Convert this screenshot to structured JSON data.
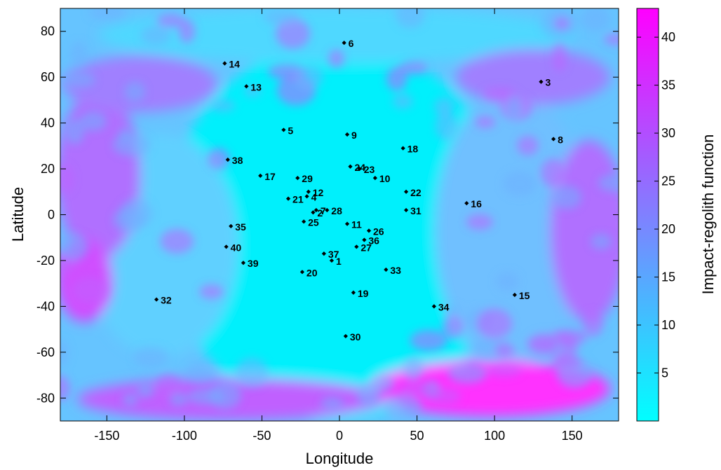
{
  "chart_data": {
    "type": "scatter",
    "subtype": "heatmap-with-labeled-points",
    "xlabel": "Longitude",
    "ylabel": "Latitude",
    "xlim": [
      -180,
      180
    ],
    "ylim": [
      -90,
      90
    ],
    "xticks": [
      -150,
      -100,
      -50,
      0,
      50,
      100,
      150
    ],
    "yticks": [
      80,
      60,
      40,
      20,
      0,
      -20,
      -40,
      -60,
      -80
    ],
    "grid": false,
    "colorbar": {
      "label": "Impact-regolith function",
      "range": [
        0,
        43
      ],
      "ticks": [
        40,
        35,
        30,
        25,
        20,
        15,
        10,
        5
      ],
      "color_low": "#00ffff",
      "color_high": "#ff00ff"
    },
    "points": [
      {
        "label": "1",
        "lon": -5,
        "lat": -20
      },
      {
        "label": "2",
        "lon": -17,
        "lat": 1
      },
      {
        "label": "3",
        "lon": 130,
        "lat": 58
      },
      {
        "label": "4",
        "lon": -21,
        "lat": 8
      },
      {
        "label": "5",
        "lon": -36,
        "lat": 37
      },
      {
        "label": "6",
        "lon": 3,
        "lat": 75
      },
      {
        "label": "7",
        "lon": -15,
        "lat": 2
      },
      {
        "label": "8",
        "lon": 138,
        "lat": 33
      },
      {
        "label": "9",
        "lon": 5,
        "lat": 35
      },
      {
        "label": "10",
        "lon": 23,
        "lat": 16
      },
      {
        "label": "11",
        "lon": 5,
        "lat": -4
      },
      {
        "label": "12",
        "lon": -20,
        "lat": 10
      },
      {
        "label": "13",
        "lon": -60,
        "lat": 56
      },
      {
        "label": "14",
        "lon": -74,
        "lat": 66
      },
      {
        "label": "15",
        "lon": 113,
        "lat": -35
      },
      {
        "label": "16",
        "lon": 82,
        "lat": 5
      },
      {
        "label": "17",
        "lon": -51,
        "lat": 17
      },
      {
        "label": "18",
        "lon": 41,
        "lat": 29
      },
      {
        "label": "19",
        "lon": 9,
        "lat": -34
      },
      {
        "label": "20",
        "lon": -24,
        "lat": -25
      },
      {
        "label": "21",
        "lon": -33,
        "lat": 7
      },
      {
        "label": "22",
        "lon": 43,
        "lat": 10
      },
      {
        "label": "23",
        "lon": 13,
        "lat": 20
      },
      {
        "label": "24",
        "lon": 7,
        "lat": 21
      },
      {
        "label": "25",
        "lon": -23,
        "lat": -3
      },
      {
        "label": "26",
        "lon": 19,
        "lat": -7
      },
      {
        "label": "27",
        "lon": 11,
        "lat": -14
      },
      {
        "label": "28",
        "lon": -8,
        "lat": 2
      },
      {
        "label": "29",
        "lon": -27,
        "lat": 16
      },
      {
        "label": "30",
        "lon": 4,
        "lat": -53
      },
      {
        "label": "31",
        "lon": 43,
        "lat": 2
      },
      {
        "label": "32",
        "lon": -118,
        "lat": -37
      },
      {
        "label": "33",
        "lon": 30,
        "lat": -24
      },
      {
        "label": "34",
        "lon": 61,
        "lat": -40
      },
      {
        "label": "35",
        "lon": -70,
        "lat": -5
      },
      {
        "label": "36",
        "lon": 16,
        "lat": -11
      },
      {
        "label": "37",
        "lon": -10,
        "lat": -17
      },
      {
        "label": "38",
        "lon": -72,
        "lat": 24
      },
      {
        "label": "39",
        "lon": -62,
        "lat": -21
      },
      {
        "label": "40",
        "lon": -73,
        "lat": -14
      }
    ]
  }
}
